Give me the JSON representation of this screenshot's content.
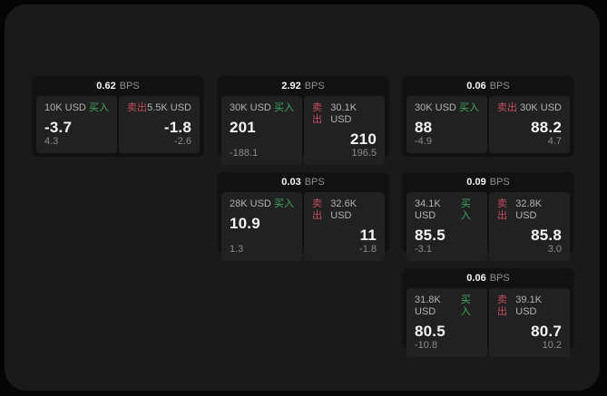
{
  "labels": {
    "bps_unit": "BPS",
    "buy": "买入",
    "sell": "卖出"
  },
  "colors": {
    "outer_bg": "#050505",
    "page_bg": "#1a1a1a",
    "card_bg": "#111111",
    "panel_bg": "#212121",
    "buy_green": "#3fa660",
    "sell_red": "#c24f60"
  },
  "cards": [
    {
      "bps": "0.62",
      "buy": {
        "amount": "10K USD",
        "price": "-3.7",
        "delta": "4.3"
      },
      "sell": {
        "amount": "5.5K USD",
        "price": "-1.8",
        "delta": "-2.6"
      }
    },
    {
      "bps": "2.92",
      "buy": {
        "amount": "30K USD",
        "price": "201",
        "delta": "-188.1"
      },
      "sell": {
        "amount": "30.1K USD",
        "price": "210",
        "delta": "196.5"
      }
    },
    {
      "bps": "0.06",
      "buy": {
        "amount": "30K USD",
        "price": "88",
        "delta": "-4.9"
      },
      "sell": {
        "amount": "30K USD",
        "price": "88.2",
        "delta": "4.7"
      }
    },
    {
      "bps": "0.03",
      "buy": {
        "amount": "28K USD",
        "price": "10.9",
        "delta": "1.3"
      },
      "sell": {
        "amount": "32.6K USD",
        "price": "11",
        "delta": "-1.8"
      }
    },
    {
      "bps": "0.09",
      "buy": {
        "amount": "34.1K USD",
        "price": "85.5",
        "delta": "-3.1"
      },
      "sell": {
        "amount": "32.8K USD",
        "price": "85.8",
        "delta": "3.0"
      }
    },
    {
      "bps": "0.06",
      "buy": {
        "amount": "31.8K USD",
        "price": "80.5",
        "delta": "-10.8"
      },
      "sell": {
        "amount": "39.1K USD",
        "price": "80.7",
        "delta": "10.2"
      }
    }
  ]
}
